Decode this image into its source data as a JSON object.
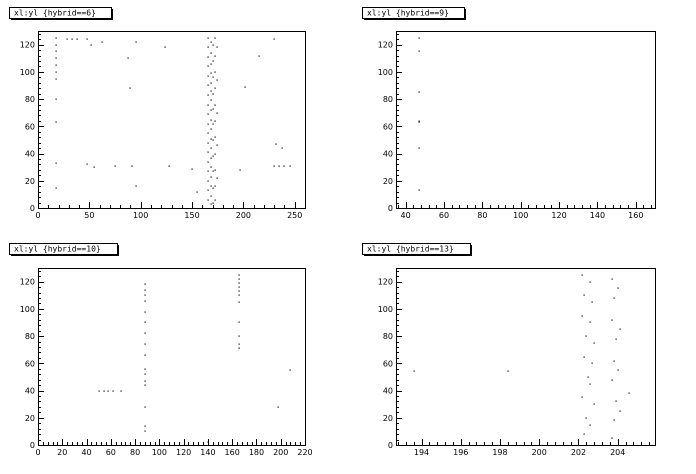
{
  "chart_data": [
    {
      "type": "scatter",
      "title": "xl:yl {hybrid==6}",
      "xlim": [
        0,
        260
      ],
      "ylim": [
        0,
        130
      ],
      "xticks": [
        0,
        50,
        100,
        150,
        200,
        250
      ],
      "yticks": [
        0,
        20,
        40,
        60,
        80,
        100,
        120
      ],
      "points": [
        [
          18,
          125
        ],
        [
          18,
          120
        ],
        [
          18,
          115
        ],
        [
          18,
          110
        ],
        [
          18,
          105
        ],
        [
          18,
          100
        ],
        [
          18,
          95
        ],
        [
          18,
          80
        ],
        [
          18,
          63
        ],
        [
          18,
          33
        ],
        [
          18,
          15
        ],
        [
          28,
          124
        ],
        [
          33,
          124
        ],
        [
          38,
          124
        ],
        [
          48,
          124
        ],
        [
          52,
          120
        ],
        [
          62,
          122
        ],
        [
          88,
          110
        ],
        [
          90,
          88
        ],
        [
          95,
          122
        ],
        [
          95,
          16
        ],
        [
          124,
          118
        ],
        [
          128,
          31
        ],
        [
          150,
          29
        ],
        [
          155,
          12
        ],
        [
          215,
          112
        ],
        [
          230,
          124
        ],
        [
          232,
          47
        ],
        [
          238,
          44
        ],
        [
          245,
          31
        ],
        [
          48,
          32
        ],
        [
          55,
          30
        ],
        [
          75,
          31
        ],
        [
          92,
          31
        ],
        [
          197,
          28
        ],
        [
          230,
          31
        ],
        [
          235,
          31
        ],
        [
          240,
          31
        ],
        [
          202,
          89
        ],
        [
          166,
          125
        ],
        [
          166,
          118
        ],
        [
          166,
          111
        ],
        [
          166,
          104
        ],
        [
          166,
          97
        ],
        [
          166,
          90
        ],
        [
          166,
          83
        ],
        [
          166,
          76
        ],
        [
          166,
          69
        ],
        [
          166,
          62
        ],
        [
          166,
          55
        ],
        [
          166,
          48
        ],
        [
          166,
          41
        ],
        [
          166,
          34
        ],
        [
          166,
          27
        ],
        [
          166,
          20
        ],
        [
          166,
          13
        ],
        [
          166,
          6
        ],
        [
          168,
          122
        ],
        [
          168,
          114
        ],
        [
          168,
          106
        ],
        [
          168,
          99
        ],
        [
          168,
          92
        ],
        [
          168,
          86
        ],
        [
          168,
          79
        ],
        [
          168,
          72
        ],
        [
          168,
          65
        ],
        [
          168,
          58
        ],
        [
          168,
          51
        ],
        [
          168,
          44
        ],
        [
          168,
          37
        ],
        [
          168,
          30
        ],
        [
          168,
          23
        ],
        [
          168,
          16
        ],
        [
          168,
          9
        ],
        [
          168,
          3
        ],
        [
          170,
          120
        ],
        [
          170,
          108
        ],
        [
          170,
          96
        ],
        [
          170,
          84
        ],
        [
          170,
          73
        ],
        [
          170,
          62
        ],
        [
          170,
          50
        ],
        [
          170,
          38
        ],
        [
          170,
          27
        ],
        [
          170,
          15
        ],
        [
          170,
          4
        ],
        [
          172,
          125
        ],
        [
          172,
          112
        ],
        [
          172,
          100
        ],
        [
          172,
          88
        ],
        [
          172,
          76
        ],
        [
          172,
          64
        ],
        [
          172,
          52
        ],
        [
          172,
          40
        ],
        [
          172,
          28
        ],
        [
          172,
          16
        ],
        [
          172,
          6
        ],
        [
          174,
          118
        ],
        [
          174,
          94
        ],
        [
          174,
          70
        ],
        [
          174,
          46
        ],
        [
          174,
          22
        ]
      ]
    },
    {
      "type": "scatter",
      "title": "xl:yl {hybrid==9}",
      "xlim": [
        35,
        170
      ],
      "ylim": [
        0,
        130
      ],
      "xticks": [
        40,
        60,
        80,
        100,
        120,
        140,
        160
      ],
      "yticks": [
        0,
        20,
        40,
        60,
        80,
        100,
        120
      ],
      "points": [
        [
          47,
          125
        ],
        [
          47,
          115
        ],
        [
          47,
          85
        ],
        [
          47,
          64
        ],
        [
          47,
          63
        ],
        [
          47,
          44
        ],
        [
          47,
          13
        ]
      ]
    },
    {
      "type": "scatter",
      "title": "xl:yl {hybrid==10}",
      "xlim": [
        0,
        220
      ],
      "ylim": [
        0,
        130
      ],
      "xticks": [
        0,
        20,
        40,
        60,
        80,
        100,
        120,
        140,
        160,
        180,
        200,
        220
      ],
      "yticks": [
        0,
        20,
        40,
        60,
        80,
        100,
        120
      ],
      "points": [
        [
          50,
          40
        ],
        [
          54,
          40
        ],
        [
          58,
          40
        ],
        [
          62,
          40
        ],
        [
          68,
          40
        ],
        [
          88,
          118
        ],
        [
          88,
          114
        ],
        [
          88,
          110
        ],
        [
          88,
          106
        ],
        [
          88,
          98
        ],
        [
          88,
          90
        ],
        [
          88,
          82
        ],
        [
          88,
          74
        ],
        [
          88,
          66
        ],
        [
          88,
          56
        ],
        [
          88,
          52
        ],
        [
          88,
          47
        ],
        [
          88,
          44
        ],
        [
          88,
          28
        ],
        [
          88,
          14
        ],
        [
          88,
          10
        ],
        [
          166,
          125
        ],
        [
          166,
          122
        ],
        [
          166,
          119
        ],
        [
          166,
          116
        ],
        [
          166,
          113
        ],
        [
          166,
          110
        ],
        [
          166,
          105
        ],
        [
          166,
          90
        ],
        [
          166,
          80
        ],
        [
          166,
          74
        ],
        [
          166,
          71
        ],
        [
          198,
          28
        ],
        [
          208,
          55
        ],
        [
          140,
          2
        ]
      ]
    },
    {
      "type": "scatter",
      "title": "xl:yl {hybrid==13}",
      "xlim": [
        192.7,
        205.9
      ],
      "ylim": [
        0,
        130
      ],
      "xticks": [
        194,
        196,
        198,
        200,
        202,
        204
      ],
      "yticks": [
        0,
        20,
        40,
        60,
        80,
        100,
        120
      ],
      "points": [
        [
          193.6,
          54
        ],
        [
          198.4,
          54
        ],
        [
          204.6,
          38
        ],
        [
          202.2,
          125
        ],
        [
          202.3,
          110
        ],
        [
          202.2,
          95
        ],
        [
          202.4,
          80
        ],
        [
          202.3,
          65
        ],
        [
          202.5,
          50
        ],
        [
          202.2,
          35
        ],
        [
          202.4,
          20
        ],
        [
          202.3,
          8
        ],
        [
          202.6,
          120
        ],
        [
          202.7,
          105
        ],
        [
          202.6,
          90
        ],
        [
          202.8,
          75
        ],
        [
          202.7,
          60
        ],
        [
          202.6,
          45
        ],
        [
          202.8,
          30
        ],
        [
          202.6,
          15
        ],
        [
          203.7,
          122
        ],
        [
          203.8,
          108
        ],
        [
          203.7,
          92
        ],
        [
          203.9,
          78
        ],
        [
          203.8,
          62
        ],
        [
          203.7,
          48
        ],
        [
          203.9,
          32
        ],
        [
          203.8,
          18
        ],
        [
          203.7,
          5
        ],
        [
          204.0,
          115
        ],
        [
          204.1,
          85
        ],
        [
          204.0,
          55
        ],
        [
          204.1,
          25
        ]
      ]
    }
  ]
}
